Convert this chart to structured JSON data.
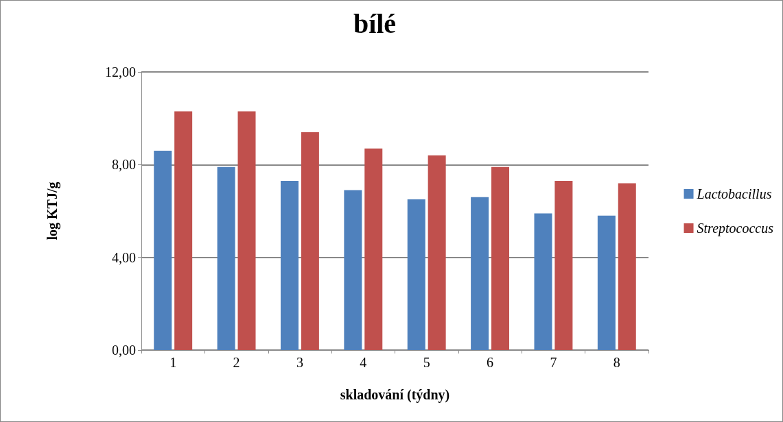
{
  "chart_data": {
    "type": "bar",
    "title": "bílé",
    "xlabel": "skladování (týdny)",
    "ylabel": "log KTJ/g",
    "categories": [
      "1",
      "2",
      "3",
      "4",
      "5",
      "6",
      "7",
      "8"
    ],
    "series": [
      {
        "name": "Lactobacillus",
        "color": "#4f81bd",
        "values": [
          8.6,
          7.9,
          7.3,
          6.9,
          6.5,
          6.6,
          5.9,
          5.8
        ]
      },
      {
        "name": "Streptococcus",
        "color": "#c0504d",
        "values": [
          10.3,
          10.3,
          9.4,
          8.7,
          8.4,
          7.9,
          7.3,
          7.2
        ]
      }
    ],
    "ylim": [
      0,
      12
    ],
    "yticks": [
      {
        "value": 0,
        "label": "0,00"
      },
      {
        "value": 4,
        "label": "4,00"
      },
      {
        "value": 8,
        "label": "8,00"
      },
      {
        "value": 12,
        "label": "12,00"
      }
    ],
    "grid": "y",
    "legend": "right"
  }
}
